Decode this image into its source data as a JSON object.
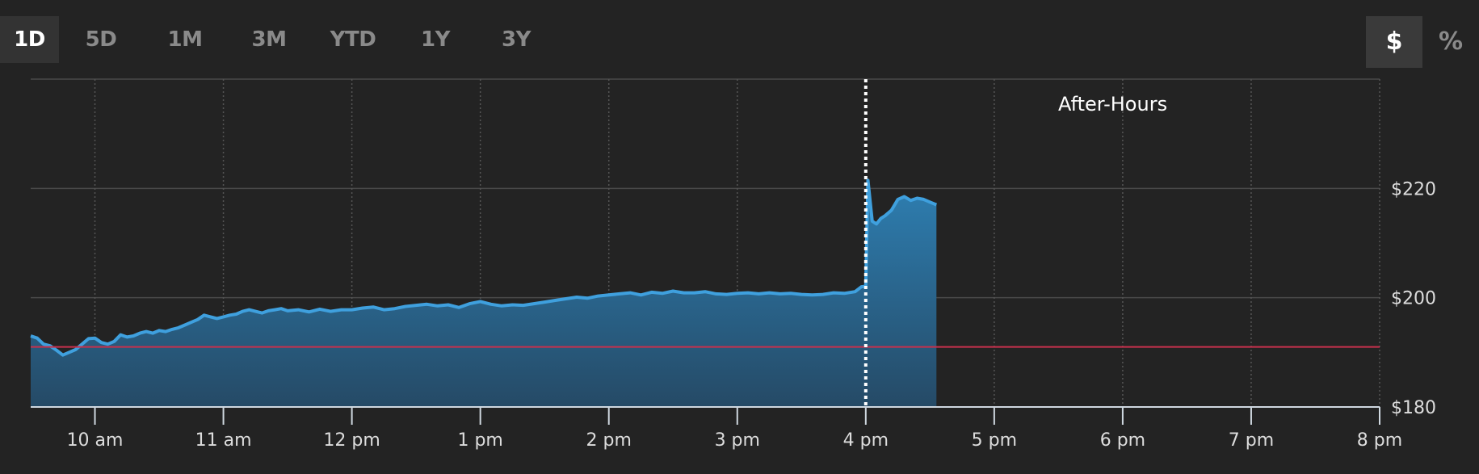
{
  "range_tabs": [
    {
      "label": "1D",
      "active": true
    },
    {
      "label": "5D",
      "active": false
    },
    {
      "label": "1M",
      "active": false
    },
    {
      "label": "3M",
      "active": false
    },
    {
      "label": "YTD",
      "active": false
    },
    {
      "label": "1Y",
      "active": false
    },
    {
      "label": "3Y",
      "active": false
    }
  ],
  "unit_toggle": {
    "dollar_label": "$",
    "percent_label": "%",
    "active": "dollar"
  },
  "colors": {
    "line": "#3fa0de",
    "fill_top": "#2e7fb2",
    "fill_bottom": "#254a66",
    "reference_line": "#c7304d",
    "grid": "#4a4a4a",
    "background": "#232323"
  },
  "chart_data": {
    "type": "area",
    "annotation": "After-Hours",
    "market_close": "4:00",
    "reference_price": 191,
    "xlim": [
      "9:30",
      "20:00"
    ],
    "ylim": [
      180,
      240
    ],
    "x_ticks": [
      {
        "t": "10:00",
        "label": "10 am"
      },
      {
        "t": "11:00",
        "label": "11 am"
      },
      {
        "t": "12:00",
        "label": "12 pm"
      },
      {
        "t": "13:00",
        "label": "1 pm"
      },
      {
        "t": "14:00",
        "label": "2 pm"
      },
      {
        "t": "15:00",
        "label": "3 pm"
      },
      {
        "t": "16:00",
        "label": "4 pm"
      },
      {
        "t": "17:00",
        "label": "5 pm"
      },
      {
        "t": "18:00",
        "label": "6 pm"
      },
      {
        "t": "19:00",
        "label": "7 pm"
      },
      {
        "t": "20:00",
        "label": "8 pm"
      }
    ],
    "y_ticks": [
      {
        "v": 220,
        "label": "$220"
      },
      {
        "v": 200,
        "label": "$200"
      },
      {
        "v": 180,
        "label": "$180"
      }
    ],
    "series": [
      {
        "x": [
          "9:30",
          "9:33",
          "9:36",
          "9:39",
          "9:42",
          "9:45",
          "9:48",
          "9:51",
          "9:54",
          "9:57",
          "10:00",
          "10:03",
          "10:06",
          "10:09",
          "10:12",
          "10:15",
          "10:18",
          "10:21",
          "10:24",
          "10:27",
          "10:30",
          "10:33",
          "10:36",
          "10:39",
          "10:42",
          "10:45",
          "10:48",
          "10:51",
          "10:54",
          "10:57",
          "11:00",
          "11:03",
          "11:06",
          "11:09",
          "11:12",
          "11:15",
          "11:18",
          "11:21",
          "11:24",
          "11:27",
          "11:30",
          "11:35",
          "11:40",
          "11:45",
          "11:50",
          "11:55",
          "12:00",
          "12:05",
          "12:10",
          "12:15",
          "12:20",
          "12:25",
          "12:30",
          "12:35",
          "12:40",
          "12:45",
          "12:50",
          "12:55",
          "13:00",
          "13:05",
          "13:10",
          "13:15",
          "13:20",
          "13:25",
          "13:30",
          "13:35",
          "13:40",
          "13:45",
          "13:50",
          "13:55",
          "14:00",
          "14:05",
          "14:10",
          "14:15",
          "14:20",
          "14:25",
          "14:30",
          "14:35",
          "14:40",
          "14:45",
          "14:50",
          "14:55",
          "15:00",
          "15:05",
          "15:10",
          "15:15",
          "15:20",
          "15:25",
          "15:30",
          "15:35",
          "15:40",
          "15:45",
          "15:50",
          "15:55",
          "15:58",
          "16:00",
          "16:01",
          "16:03",
          "16:05",
          "16:07",
          "16:09",
          "16:12",
          "16:15",
          "16:18",
          "16:21",
          "16:24",
          "16:27",
          "16:30",
          "16:33"
        ],
        "y": [
          193.0,
          192.6,
          191.5,
          191.2,
          190.4,
          189.5,
          190.0,
          190.5,
          191.5,
          192.5,
          192.6,
          191.8,
          191.5,
          192.0,
          193.2,
          192.8,
          193.0,
          193.5,
          193.8,
          193.5,
          194.0,
          193.8,
          194.2,
          194.5,
          195.0,
          195.5,
          196.0,
          196.8,
          196.5,
          196.2,
          196.5,
          196.8,
          197.0,
          197.5,
          197.8,
          197.5,
          197.2,
          197.6,
          197.8,
          198.0,
          197.6,
          197.8,
          197.4,
          197.9,
          197.5,
          197.8,
          197.8,
          198.1,
          198.3,
          197.8,
          198.0,
          198.4,
          198.6,
          198.8,
          198.5,
          198.7,
          198.2,
          198.9,
          199.3,
          198.8,
          198.5,
          198.7,
          198.6,
          198.9,
          199.2,
          199.5,
          199.8,
          200.1,
          199.9,
          200.3,
          200.5,
          200.7,
          200.9,
          200.5,
          201.0,
          200.8,
          201.2,
          200.9,
          200.9,
          201.1,
          200.7,
          200.6,
          200.8,
          200.9,
          200.7,
          200.9,
          200.7,
          200.8,
          200.6,
          200.5,
          200.6,
          200.9,
          200.8,
          201.1,
          202.0,
          202.1,
          221.5,
          214.0,
          213.5,
          214.5,
          215.0,
          216.0,
          218.0,
          218.5,
          217.8,
          218.2,
          218.0,
          217.5,
          217.0
        ]
      }
    ]
  }
}
